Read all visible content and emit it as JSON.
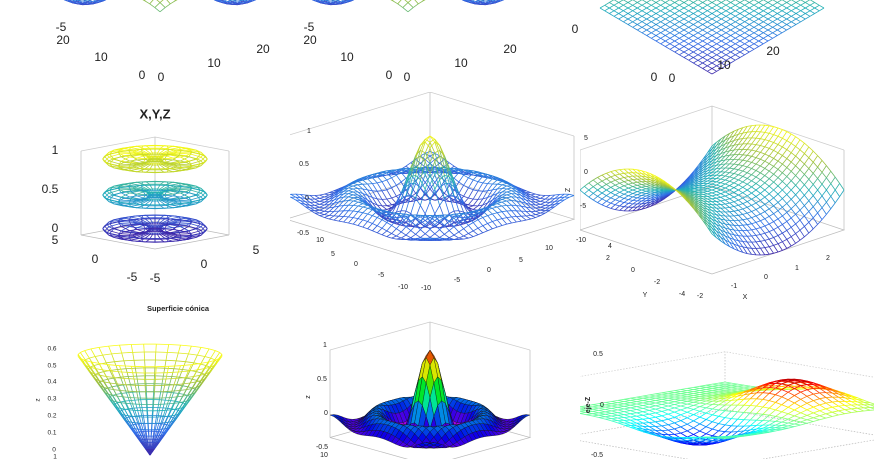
{
  "panels": [
    {
      "labels": [
        "-5",
        "20",
        "10",
        "0",
        "0",
        "10",
        "20"
      ]
    },
    {
      "labels": [
        "-5",
        "20",
        "10",
        "0",
        "0",
        "10",
        "20"
      ]
    },
    {
      "labels": [
        "0",
        "0",
        "0",
        "10",
        "20"
      ]
    },
    {
      "title": "X,Y,Z",
      "labels": [
        "1",
        "0.5",
        "0",
        "5",
        "0",
        "-5",
        "-5",
        "0",
        "5"
      ]
    },
    {
      "labels": [
        "1",
        "0.5",
        "0",
        "-0.5",
        "10",
        "5",
        "0",
        "-5",
        "-10",
        "-10",
        "-5",
        "0",
        "5",
        "10"
      ]
    },
    {
      "z_label": "Z",
      "y_label": "Y",
      "x_label": "X",
      "labels": [
        "5",
        "0",
        "-5",
        "-10",
        "4",
        "2",
        "0",
        "-2",
        "-4",
        "-2",
        "-1",
        "0",
        "1",
        "2"
      ]
    },
    {
      "title": "Superficie cónica",
      "z_label": "z",
      "labels": [
        "0.6",
        "0.5",
        "0.4",
        "0.3",
        "0.2",
        "0.1",
        "0",
        "1"
      ]
    },
    {
      "z_label": "z",
      "labels": [
        "1",
        "0.5",
        "0",
        "-0.5",
        "10"
      ]
    },
    {
      "z_label": "eje-Z",
      "labels": [
        "0.5",
        "0",
        "-0.5"
      ]
    }
  ]
}
